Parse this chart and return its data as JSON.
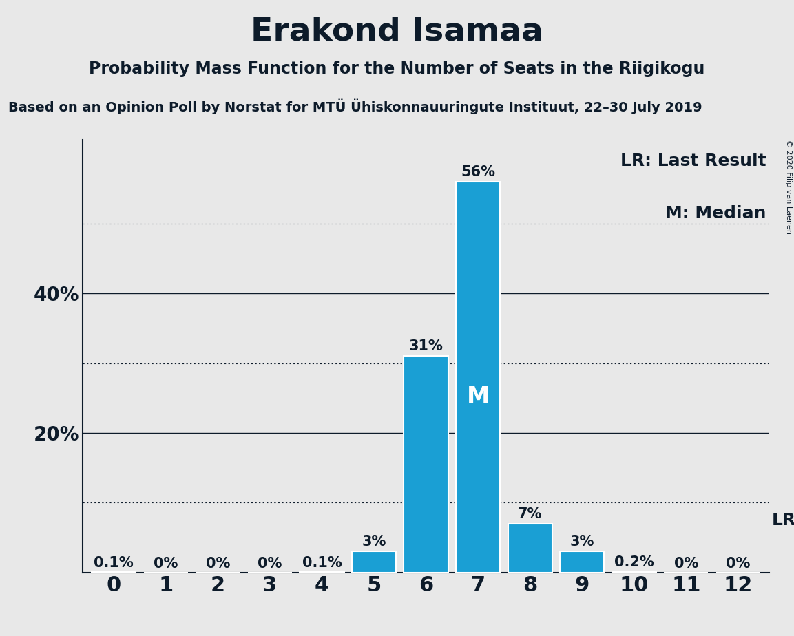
{
  "title": "Erakond Isamaa",
  "subtitle": "Probability Mass Function for the Number of Seats in the Riigikogu",
  "source_line": "Based on an Opinion Poll by Norstat for MTÜ Ühiskonnauuringute Instituut, 22–30 July 2019",
  "copyright": "© 2020 Filip van Laenen",
  "categories": [
    0,
    1,
    2,
    3,
    4,
    5,
    6,
    7,
    8,
    9,
    10,
    11,
    12
  ],
  "values": [
    0.1,
    0.0,
    0.0,
    0.0,
    0.1,
    3.0,
    31.0,
    56.0,
    7.0,
    3.0,
    0.2,
    0.0,
    0.0
  ],
  "bar_color": "#1a9fd4",
  "bar_labels": [
    "0.1%",
    "0%",
    "0%",
    "0%",
    "0.1%",
    "3%",
    "31%",
    "56%",
    "7%",
    "3%",
    "0.2%",
    "0%",
    "0%"
  ],
  "median_bar": 7,
  "last_result_bar": 12,
  "legend_lr": "LR: Last Result",
  "legend_m": "M: Median",
  "lr_label": "LR",
  "m_label": "M",
  "solid_gridlines": [
    20,
    40
  ],
  "dotted_gridlines": [
    10,
    30,
    50
  ],
  "ytick_positions": [
    20,
    40
  ],
  "ytick_labels": [
    "20%",
    "40%"
  ],
  "ylim": [
    0,
    62
  ],
  "background_color": "#e8e8e8",
  "title_fontsize": 34,
  "subtitle_fontsize": 17,
  "source_fontsize": 14,
  "axis_tick_fontsize": 20,
  "bar_label_fontsize": 15,
  "legend_fontsize": 18,
  "median_label_fontsize": 24,
  "lr_fontsize": 18,
  "text_color": "#0d1b2a"
}
